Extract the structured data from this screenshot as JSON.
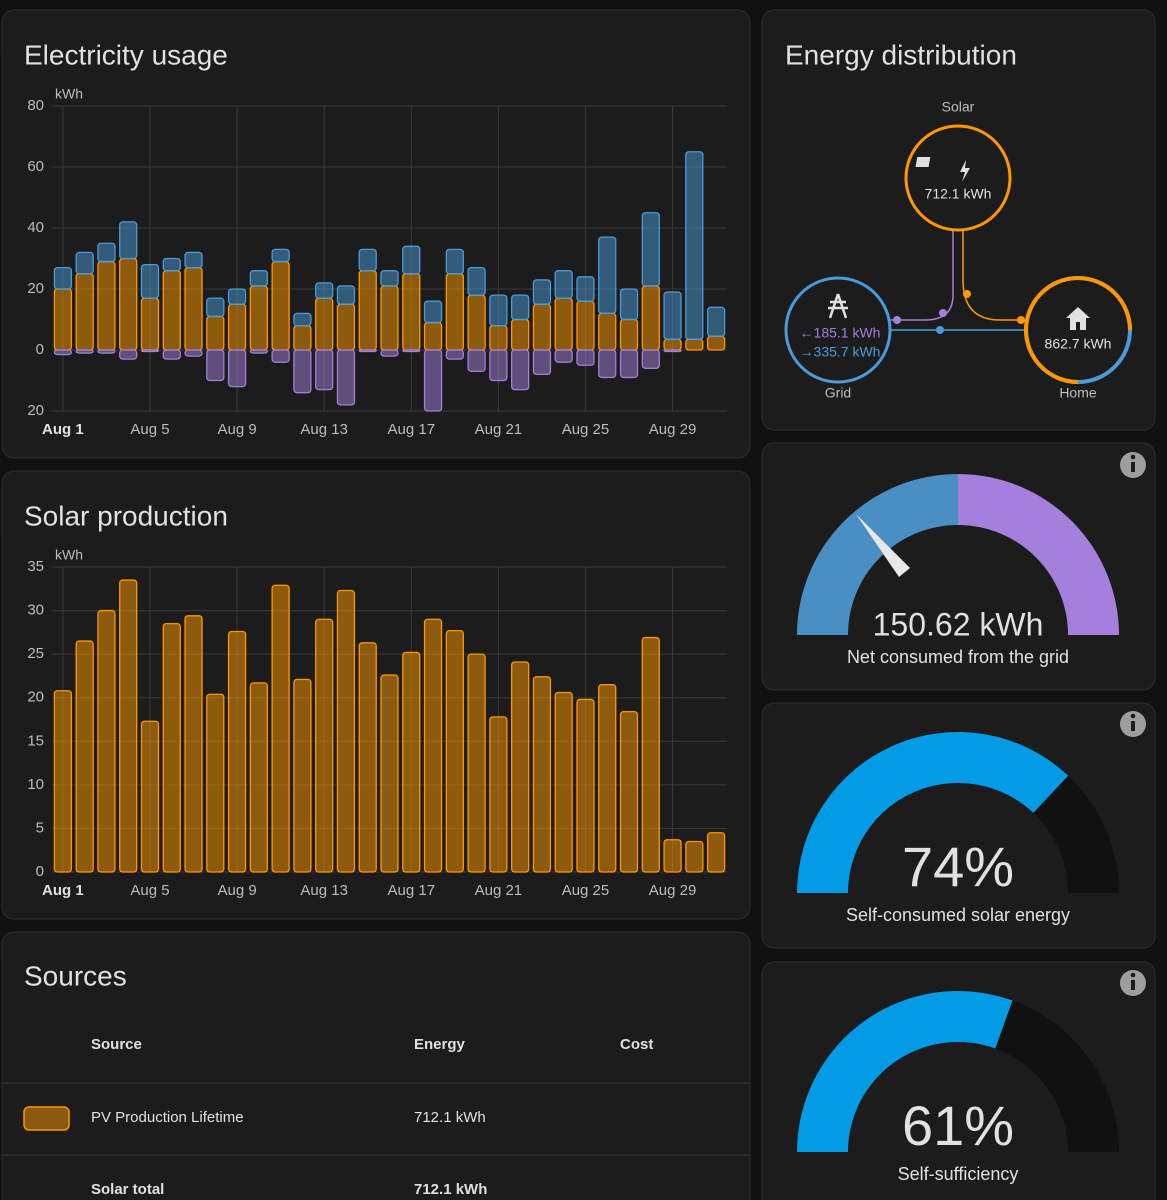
{
  "chart_data": [
    {
      "type": "bar",
      "stacked": true,
      "title": "Electricity usage",
      "y_unit": "kWh",
      "categories": [
        "Aug 1",
        null,
        null,
        null,
        "Aug 5",
        null,
        null,
        null,
        "Aug 9",
        null,
        null,
        null,
        "Aug 13",
        null,
        null,
        null,
        "Aug 17",
        null,
        null,
        null,
        "Aug 21",
        null,
        null,
        null,
        "Aug 25",
        null,
        null,
        null,
        "Aug 29",
        null,
        null
      ],
      "series": [
        {
          "color": "#ff9800",
          "values": [
            20,
            25,
            29,
            30,
            17,
            26,
            27,
            11,
            15,
            21,
            29,
            8,
            17,
            15,
            26,
            21,
            25,
            9,
            25,
            18,
            8,
            10,
            15,
            17,
            16,
            12,
            10,
            21,
            3.5,
            3.5,
            4.5
          ]
        },
        {
          "color": "#4a9bd8",
          "values": [
            7,
            7,
            6,
            12,
            11,
            4,
            5,
            6,
            5,
            5,
            4,
            4,
            5,
            6,
            7,
            5,
            9,
            7,
            8,
            9,
            10,
            8,
            8,
            9,
            8,
            25,
            10,
            24,
            15.5,
            61.5,
            9.5
          ]
        },
        {
          "color": "#a37fdb",
          "values": [
            -1.5,
            -1,
            -1,
            -3,
            -0.5,
            -3,
            -2,
            -10,
            -12,
            -1,
            -4,
            -14,
            -13,
            -18,
            -0.5,
            -2,
            -0.5,
            -20,
            -3,
            -7,
            -10,
            -13,
            -8,
            -4,
            -5,
            -9,
            -9,
            -6,
            -0.5,
            0,
            0
          ]
        }
      ],
      "ylim": [
        -20,
        80
      ],
      "yticks": [
        {
          "value": -20,
          "label": "20"
        },
        0,
        20,
        40,
        60,
        80
      ],
      "grid": true
    },
    {
      "type": "bar",
      "title": "Solar production",
      "y_unit": "kWh",
      "categories": [
        "Aug 1",
        null,
        null,
        null,
        "Aug 5",
        null,
        null,
        null,
        "Aug 9",
        null,
        null,
        null,
        "Aug 13",
        null,
        null,
        null,
        "Aug 17",
        null,
        null,
        null,
        "Aug 21",
        null,
        null,
        null,
        "Aug 25",
        null,
        null,
        null,
        "Aug 29",
        null,
        null
      ],
      "values": [
        20.8,
        26.5,
        30,
        33.5,
        17.3,
        28.5,
        29.4,
        20.4,
        27.6,
        21.7,
        32.9,
        22.1,
        29,
        32.3,
        26.3,
        22.6,
        25.2,
        29,
        27.7,
        25,
        17.8,
        24.1,
        22.4,
        20.6,
        19.8,
        21.5,
        18.4,
        26.9,
        3.7,
        3.5,
        4.5
      ],
      "color": "#ff9800",
      "ylim": [
        0,
        35
      ],
      "yticks": [
        0,
        5,
        10,
        15,
        20,
        25,
        30,
        35
      ],
      "grid": true
    }
  ],
  "distribution": {
    "title": "Energy distribution",
    "solar": {
      "label": "Solar",
      "value": "712.1 kWh"
    },
    "grid": {
      "label": "Grid",
      "from_grid": "←185.1 kWh",
      "to_grid": "→335.7 kWh"
    },
    "home": {
      "label": "Home",
      "value": "862.7 kWh"
    }
  },
  "gauges": [
    {
      "label": "150.62 kWh",
      "caption": "Net consumed from the grid"
    },
    {
      "value": 74,
      "label": "74%",
      "range": [
        0,
        100
      ],
      "caption": "Self-consumed solar energy"
    },
    {
      "value": 61,
      "label": "61%",
      "range": [
        0,
        100
      ],
      "caption": "Self-sufficiency"
    }
  ],
  "sources": {
    "title": "Sources",
    "columns": [
      "Source",
      "Energy",
      "Cost"
    ],
    "rows": [
      [
        "PV Production Lifetime",
        "712.1 kWh"
      ]
    ],
    "total": [
      "Solar total",
      "712.1 kWh"
    ]
  }
}
